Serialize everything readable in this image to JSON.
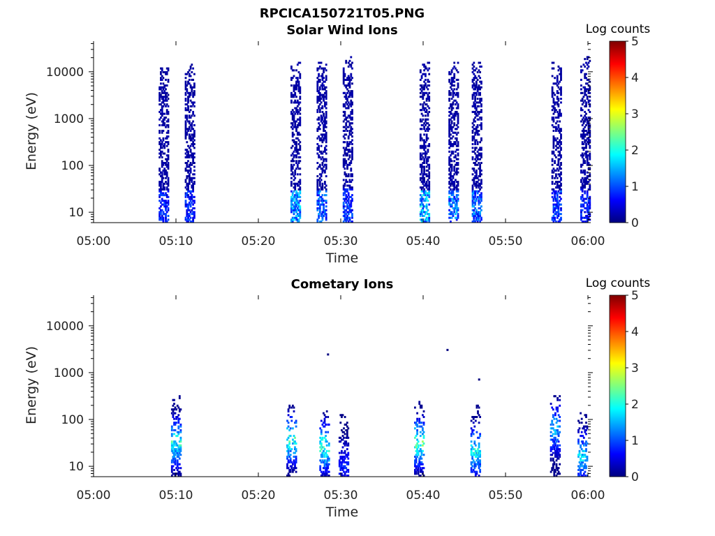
{
  "figure_title": "RPCICA150721T05.PNG",
  "colors": {
    "colormap": [
      "#00007f",
      "#0000ff",
      "#007fff",
      "#00ffff",
      "#7fff7f",
      "#ffff00",
      "#ff7f00",
      "#ff0000",
      "#7f0000"
    ]
  },
  "chart_data": [
    {
      "type": "heatmap",
      "title": "Solar Wind Ions",
      "xlabel": "Time",
      "ylabel": "Energy (eV)",
      "x_ticks": [
        "05:00",
        "05:10",
        "05:20",
        "05:30",
        "05:40",
        "05:50",
        "06:00"
      ],
      "y_ticks": [
        "10",
        "100",
        "1000",
        "10000"
      ],
      "y_scale": "log",
      "ylim": [
        6,
        45000
      ],
      "xlim_minutes_after_0500": [
        0,
        60
      ],
      "colorbar": {
        "label": "Log counts",
        "ticks": [
          "0",
          "1",
          "2",
          "3",
          "4",
          "5"
        ],
        "range": [
          0,
          5
        ]
      },
      "bursts": [
        {
          "time": "05:08:30",
          "emin": 6,
          "emax": 12000,
          "low_energy_log_counts": 0.7,
          "high_energy_log_counts": 0.2
        },
        {
          "time": "05:11:40",
          "emin": 6,
          "emax": 14000,
          "low_energy_log_counts": 0.7,
          "high_energy_log_counts": 0.2
        },
        {
          "time": "05:24:30",
          "emin": 6,
          "emax": 15000,
          "low_energy_log_counts": 1.3,
          "high_energy_log_counts": 0.2
        },
        {
          "time": "05:27:40",
          "emin": 6,
          "emax": 16000,
          "low_energy_log_counts": 1.0,
          "high_energy_log_counts": 0.2
        },
        {
          "time": "05:30:50",
          "emin": 6,
          "emax": 20000,
          "low_energy_log_counts": 0.8,
          "high_energy_log_counts": 0.2
        },
        {
          "time": "05:40:10",
          "emin": 6,
          "emax": 16000,
          "low_energy_log_counts": 1.4,
          "high_energy_log_counts": 0.2
        },
        {
          "time": "05:43:40",
          "emin": 6,
          "emax": 16000,
          "low_energy_log_counts": 1.1,
          "high_energy_log_counts": 0.2
        },
        {
          "time": "05:46:30",
          "emin": 6,
          "emax": 16000,
          "low_energy_log_counts": 1.0,
          "high_energy_log_counts": 0.2
        },
        {
          "time": "05:56:10",
          "emin": 6,
          "emax": 16000,
          "low_energy_log_counts": 0.8,
          "high_energy_log_counts": 0.2
        },
        {
          "time": "05:59:40",
          "emin": 6,
          "emax": 20000,
          "low_energy_log_counts": 0.7,
          "high_energy_log_counts": 0.2
        }
      ]
    },
    {
      "type": "heatmap",
      "title": "Cometary Ions",
      "xlabel": "Time",
      "ylabel": "Energy (eV)",
      "x_ticks": [
        "05:00",
        "05:10",
        "05:20",
        "05:30",
        "05:40",
        "05:50",
        "06:00"
      ],
      "y_ticks": [
        "10",
        "100",
        "1000",
        "10000"
      ],
      "y_scale": "log",
      "ylim": [
        6,
        45000
      ],
      "xlim_minutes_after_0500": [
        0,
        60
      ],
      "colorbar": {
        "label": "Log counts",
        "ticks": [
          "0",
          "1",
          "2",
          "3",
          "4",
          "5"
        ],
        "range": [
          0,
          5
        ]
      },
      "bursts": [
        {
          "time": "05:10:00",
          "emin": 6,
          "emax": 300,
          "peak_log_counts": 2.3,
          "peak_energy": 30
        },
        {
          "time": "05:24:00",
          "emin": 6,
          "emax": 220,
          "peak_log_counts": 2.4,
          "peak_energy": 35
        },
        {
          "time": "05:28:00",
          "emin": 6,
          "emax": 150,
          "peak_log_counts": 2.5,
          "peak_energy": 25
        },
        {
          "time": "05:30:20",
          "emin": 6,
          "emax": 120,
          "peak_log_counts": 0.9,
          "peak_energy": 10
        },
        {
          "time": "05:39:30",
          "emin": 6,
          "emax": 230,
          "peak_log_counts": 2.6,
          "peak_energy": 30
        },
        {
          "time": "05:46:20",
          "emin": 6,
          "emax": 200,
          "peak_log_counts": 2.2,
          "peak_energy": 20
        },
        {
          "time": "05:56:00",
          "emin": 6,
          "emax": 300,
          "peak_log_counts": 1.8,
          "peak_energy": 60
        },
        {
          "time": "05:59:20",
          "emin": 6,
          "emax": 130,
          "peak_log_counts": 2.0,
          "peak_energy": 15
        }
      ],
      "isolated_points": [
        {
          "time": "05:28:20",
          "energy": 2400
        },
        {
          "time": "05:42:50",
          "energy": 3000
        },
        {
          "time": "05:46:40",
          "energy": 700
        }
      ]
    }
  ]
}
